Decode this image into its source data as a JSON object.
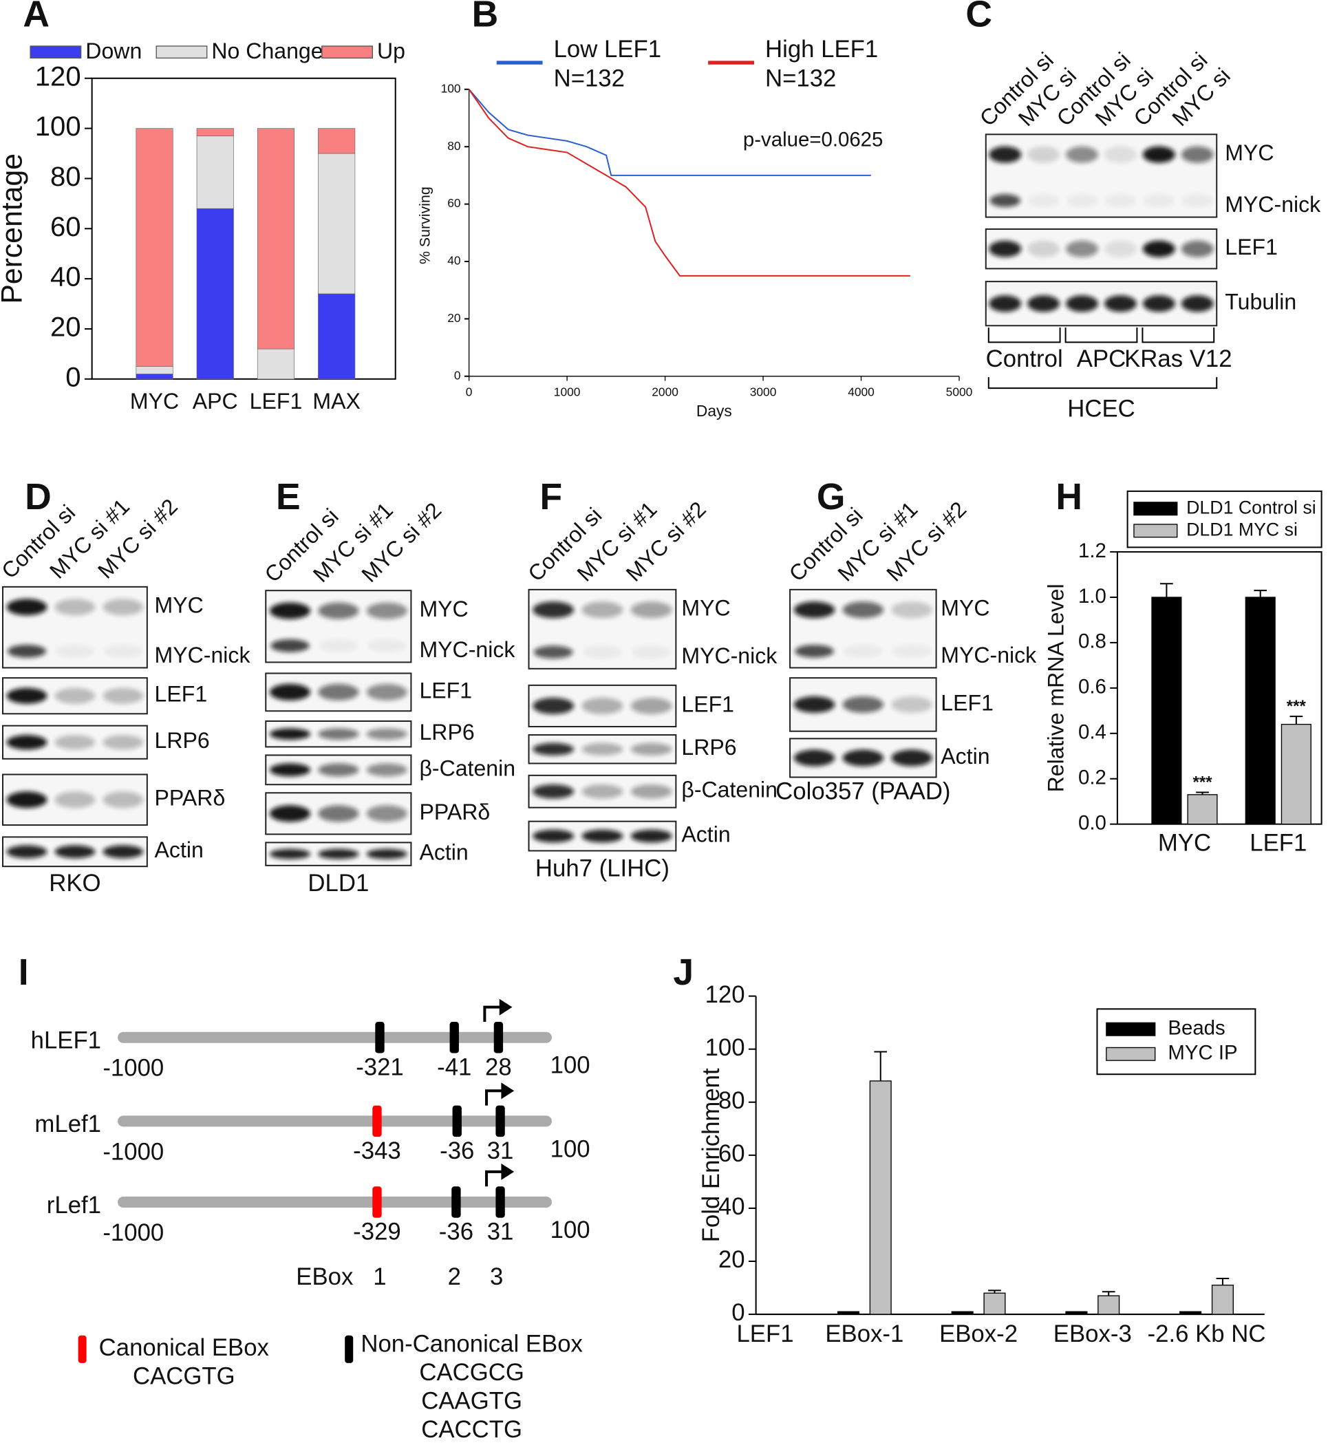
{
  "panel_letters": [
    "A",
    "B",
    "C",
    "D",
    "E",
    "F",
    "G",
    "H",
    "I",
    "J"
  ],
  "chart_data": [
    {
      "type": "stacked_bar",
      "categories": [
        "MYC",
        "APC",
        "LEF1",
        "MAX"
      ],
      "ylabel": "Percentage",
      "ylim": [
        0,
        120
      ],
      "yticks": [
        0,
        20,
        40,
        60,
        80,
        100,
        120
      ],
      "legend": "top",
      "series": [
        {
          "name": "Down",
          "color": "#3c3cf0",
          "values": [
            2,
            68,
            0,
            34
          ]
        },
        {
          "name": "No Change",
          "color": "#e0e0e0",
          "values": [
            3,
            29,
            12,
            56
          ]
        },
        {
          "name": "Up",
          "color": "#f88080",
          "values": [
            95,
            3,
            88,
            10
          ]
        }
      ]
    },
    {
      "type": "line",
      "xlabel": "Days",
      "ylabel": "% Surviving",
      "annotation": "p-value=0.0625",
      "xlim": [
        0,
        5000
      ],
      "xticks": [
        0,
        1000,
        2000,
        3000,
        4000,
        5000
      ],
      "ylim": [
        0,
        100
      ],
      "yticks": [
        0,
        20,
        40,
        60,
        80,
        100
      ],
      "legend": "top",
      "series": [
        {
          "name": "Low LEF1",
          "n_label": "N=132",
          "color": "#2a5fd0",
          "x": [
            0,
            200,
            400,
            600,
            800,
            1000,
            1200,
            1400,
            1450,
            2000,
            3000,
            4100
          ],
          "values": [
            100,
            92,
            86,
            84,
            83,
            82,
            80,
            77,
            70,
            70,
            70,
            70
          ]
        },
        {
          "name": "High LEF1",
          "n_label": "N=132",
          "color": "#e02020",
          "x": [
            0,
            200,
            400,
            600,
            800,
            1000,
            1200,
            1400,
            1600,
            1800,
            1900,
            2000,
            2150,
            3000,
            4500
          ],
          "values": [
            100,
            90,
            83,
            80,
            79,
            78,
            74,
            70,
            66,
            59,
            47,
            42,
            35,
            35,
            35
          ]
        }
      ]
    },
    {
      "type": "bar",
      "ylabel": "Relative mRNA Level",
      "categories": [
        "MYC",
        "LEF1"
      ],
      "ylim": [
        0,
        1.2
      ],
      "yticks": [
        {
          "value": 0,
          "label": "0.0"
        },
        0.2,
        0.4,
        0.6,
        0.8,
        {
          "value": 1,
          "label": "1.0"
        },
        1.2
      ],
      "legend": "top",
      "series": [
        {
          "name": "DLD1 Control si",
          "color": "#000000",
          "values": [
            1,
            1
          ],
          "errors": [
            0.06,
            0.03
          ]
        },
        {
          "name": "DLD1 MYC si",
          "color": "#c0c0c0",
          "values": [
            0.13,
            0.44
          ],
          "errors": [
            0.01,
            0.035
          ],
          "significance": [
            "***",
            "***"
          ]
        }
      ]
    },
    {
      "type": "bar",
      "ylabel": "Fold Enrichment",
      "xlabel": "LEF1",
      "xlabel_color": "#1aa84a",
      "categories": [
        "EBox-1",
        "EBox-2",
        "EBox-3",
        "-2.6 Kb NC"
      ],
      "ylim": [
        0,
        120
      ],
      "yticks": [
        0,
        20,
        40,
        60,
        80,
        100,
        120
      ],
      "legend": "upper right",
      "series": [
        {
          "name": "Beads",
          "color": "#000000",
          "values": [
            1,
            1,
            1,
            1
          ]
        },
        {
          "name": "MYC IP",
          "color": "#c0c0c0",
          "values": [
            88,
            8,
            7,
            11
          ],
          "errors": [
            11,
            1,
            1.5,
            2.5
          ]
        }
      ]
    }
  ],
  "blots": [
    {
      "lanes": [
        "Control si",
        "MYC si",
        "Control si",
        "MYC si",
        "Control si",
        "MYC si"
      ],
      "boxes": [
        {
          "labels": [
            "MYC",
            "MYC-nick"
          ]
        },
        {
          "labels": [
            "LEF1"
          ],
          "label_color": "#1aa84a"
        },
        {
          "labels": [
            "Tubulin"
          ]
        }
      ],
      "groups": [
        "Control",
        "APC",
        "KRas V12"
      ],
      "cell_line": "HCEC"
    },
    {
      "lanes": [
        "Control si",
        "MYC si #1",
        "MYC si #2"
      ],
      "boxes": [
        {
          "labels": [
            "MYC",
            "MYC-nick"
          ]
        },
        {
          "labels": [
            "LEF1"
          ],
          "label_color": "#1aa84a"
        },
        {
          "labels": [
            "LRP6"
          ]
        },
        {
          "labels": [
            "PPARδ"
          ]
        },
        {
          "labels": [
            "Actin"
          ]
        }
      ],
      "cell_line": "RKO"
    },
    {
      "lanes": [
        "Control si",
        "MYC si #1",
        "MYC si #2"
      ],
      "boxes": [
        {
          "labels": [
            "MYC",
            "MYC-nick"
          ]
        },
        {
          "labels": [
            "LEF1"
          ],
          "label_color": "#1aa84a"
        },
        {
          "labels": [
            "LRP6"
          ]
        },
        {
          "labels": [
            "β-Catenin"
          ]
        },
        {
          "labels": [
            "PPARδ"
          ]
        },
        {
          "labels": [
            "Actin"
          ]
        }
      ],
      "cell_line": "DLD1"
    },
    {
      "lanes": [
        "Control si",
        "MYC si #1",
        "MYC si #2"
      ],
      "boxes": [
        {
          "labels": [
            "MYC",
            "MYC-nick"
          ]
        },
        {
          "labels": [
            "LEF1"
          ],
          "label_color": "#1aa84a"
        },
        {
          "labels": [
            "LRP6"
          ]
        },
        {
          "labels": [
            "β-Catenin"
          ]
        },
        {
          "labels": [
            "Actin"
          ]
        }
      ],
      "cell_line": "Huh7 (LIHC)"
    },
    {
      "lanes": [
        "Control si",
        "MYC si #1",
        "MYC si #2"
      ],
      "boxes": [
        {
          "labels": [
            "MYC",
            "MYC-nick"
          ]
        },
        {
          "labels": [
            "LEF1"
          ],
          "label_color": "#1aa84a"
        },
        {
          "labels": [
            "Actin"
          ]
        }
      ],
      "cell_line": "Colo357 (PAAD)"
    }
  ],
  "promoter_diagram": {
    "rows": [
      {
        "name": "hLEF1",
        "start": -1000,
        "end": 100,
        "sites": [
          {
            "position": -321,
            "canonical": false
          },
          {
            "position": -41,
            "canonical": false
          },
          {
            "position": 28,
            "canonical": false
          }
        ]
      },
      {
        "name": "mLef1",
        "start": -1000,
        "end": 100,
        "sites": [
          {
            "position": -343,
            "canonical": true
          },
          {
            "position": -36,
            "canonical": false
          },
          {
            "position": 31,
            "canonical": false
          }
        ]
      },
      {
        "name": "rLef1",
        "start": -1000,
        "end": 100,
        "sites": [
          {
            "position": -329,
            "canonical": true
          },
          {
            "position": -36,
            "canonical": false
          },
          {
            "position": 31,
            "canonical": false
          }
        ]
      }
    ],
    "ebox_label": "EBox",
    "ebox_numbers": [
      1,
      2,
      3
    ],
    "legend": [
      {
        "name": "Canonical EBox",
        "sequences": [
          "CACGTG"
        ],
        "color": "#ff0000"
      },
      {
        "name": "Non-Canonical EBox",
        "sequences": [
          "CACGCG",
          "CAAGTG",
          "CACCTG"
        ],
        "color": "#000000"
      }
    ]
  }
}
